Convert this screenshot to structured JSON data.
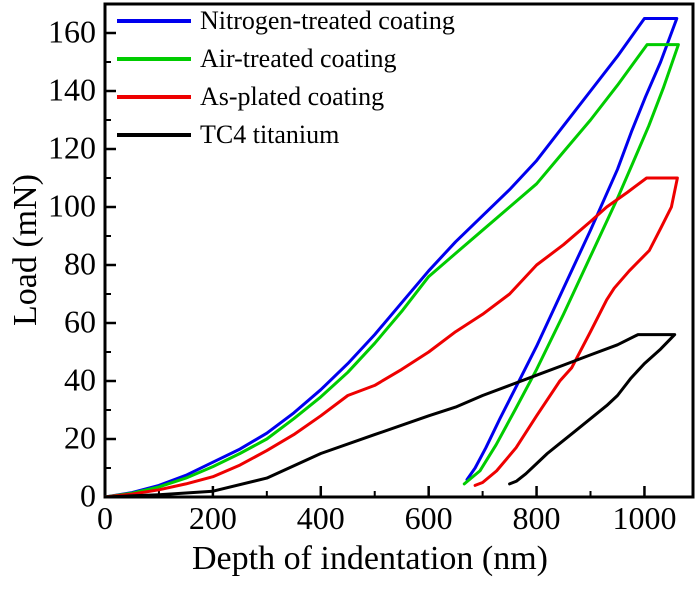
{
  "chart_data": {
    "type": "line",
    "title": "",
    "xlabel": "Depth of indentation (nm)",
    "ylabel": "Load (mN)",
    "xlim": [
      0,
      1090
    ],
    "ylim": [
      0,
      170
    ],
    "x_major_ticks": [
      0,
      200,
      400,
      600,
      800,
      1000
    ],
    "x_minor_ticks": [
      100,
      300,
      500,
      700,
      900
    ],
    "y_major_ticks": [
      0,
      20,
      40,
      60,
      80,
      100,
      120,
      140,
      160
    ],
    "y_minor_ticks": [
      10,
      30,
      50,
      70,
      90,
      110,
      130,
      150
    ],
    "grid": false,
    "legend_position": "top-left-inside",
    "axis_color": "#000000",
    "series": [
      {
        "name": "Nitrogen-treated coating",
        "color": "#0000ee",
        "max_load_mN": 165,
        "points": [
          [
            0,
            0
          ],
          [
            50,
            1.5
          ],
          [
            100,
            4
          ],
          [
            150,
            7.5
          ],
          [
            200,
            12
          ],
          [
            250,
            16.5
          ],
          [
            300,
            22
          ],
          [
            350,
            29
          ],
          [
            400,
            37
          ],
          [
            450,
            46
          ],
          [
            500,
            56
          ],
          [
            550,
            67
          ],
          [
            600,
            78
          ],
          [
            650,
            88
          ],
          [
            700,
            97
          ],
          [
            750,
            106
          ],
          [
            800,
            116
          ],
          [
            850,
            128
          ],
          [
            900,
            140
          ],
          [
            950,
            152
          ],
          [
            1000,
            165
          ],
          [
            1060,
            165
          ],
          [
            1030,
            150
          ],
          [
            1002,
            138
          ],
          [
            976,
            126
          ],
          [
            950,
            113
          ],
          [
            900,
            92
          ],
          [
            850,
            72
          ],
          [
            800,
            52
          ],
          [
            762,
            38
          ],
          [
            732,
            27
          ],
          [
            706,
            17
          ],
          [
            686,
            10
          ],
          [
            671,
            6
          ]
        ]
      },
      {
        "name": "Air-treated coating",
        "color": "#00cc00",
        "max_load_mN": 156,
        "points": [
          [
            0,
            0
          ],
          [
            50,
            1.3
          ],
          [
            100,
            3.5
          ],
          [
            150,
            6.5
          ],
          [
            200,
            10.5
          ],
          [
            250,
            15
          ],
          [
            300,
            20
          ],
          [
            350,
            27
          ],
          [
            400,
            34.5
          ],
          [
            450,
            43
          ],
          [
            500,
            53
          ],
          [
            550,
            64
          ],
          [
            600,
            76
          ],
          [
            650,
            84
          ],
          [
            700,
            92
          ],
          [
            750,
            100
          ],
          [
            800,
            108
          ],
          [
            850,
            119
          ],
          [
            900,
            130
          ],
          [
            950,
            142
          ],
          [
            1005,
            156
          ],
          [
            1063,
            156
          ],
          [
            1035,
            141
          ],
          [
            1008,
            128
          ],
          [
            978,
            115
          ],
          [
            950,
            103
          ],
          [
            900,
            83
          ],
          [
            850,
            63
          ],
          [
            800,
            44
          ],
          [
            760,
            30
          ],
          [
            725,
            18
          ],
          [
            695,
            9
          ],
          [
            666,
            4.5
          ]
        ]
      },
      {
        "name": "As-plated coating",
        "color": "#ee0000",
        "max_load_mN": 110,
        "points": [
          [
            0,
            0
          ],
          [
            50,
            1
          ],
          [
            100,
            2.5
          ],
          [
            150,
            4.5
          ],
          [
            200,
            7
          ],
          [
            250,
            11
          ],
          [
            300,
            16
          ],
          [
            350,
            21.5
          ],
          [
            400,
            28
          ],
          [
            450,
            35
          ],
          [
            500,
            38.5
          ],
          [
            550,
            44
          ],
          [
            600,
            50
          ],
          [
            650,
            57
          ],
          [
            700,
            63
          ],
          [
            750,
            70
          ],
          [
            800,
            80
          ],
          [
            850,
            87
          ],
          [
            900,
            95
          ],
          [
            930,
            100
          ],
          [
            968,
            105
          ],
          [
            1004,
            110
          ],
          [
            1061,
            110
          ],
          [
            1050,
            100
          ],
          [
            1031,
            93
          ],
          [
            1009,
            85
          ],
          [
            972,
            78
          ],
          [
            944,
            72
          ],
          [
            930,
            68
          ],
          [
            900,
            57
          ],
          [
            865,
            44.5
          ],
          [
            843,
            40
          ],
          [
            800,
            28
          ],
          [
            762,
            17
          ],
          [
            726,
            9
          ],
          [
            700,
            5
          ],
          [
            686,
            4
          ]
        ]
      },
      {
        "name": "TC4 titanium",
        "color": "#000000",
        "max_load_mN": 56,
        "points": [
          [
            0,
            0
          ],
          [
            100,
            0.8
          ],
          [
            200,
            2
          ],
          [
            300,
            6.5
          ],
          [
            400,
            15
          ],
          [
            500,
            21.5
          ],
          [
            600,
            28
          ],
          [
            650,
            31
          ],
          [
            700,
            35
          ],
          [
            750,
            38.5
          ],
          [
            800,
            42
          ],
          [
            850,
            45.5
          ],
          [
            900,
            49
          ],
          [
            950,
            52.5
          ],
          [
            988,
            56
          ],
          [
            1056,
            56
          ],
          [
            1030,
            51
          ],
          [
            1000,
            46
          ],
          [
            975,
            41
          ],
          [
            950,
            35
          ],
          [
            930,
            31.5
          ],
          [
            900,
            27
          ],
          [
            870,
            22.5
          ],
          [
            843,
            18.5
          ],
          [
            820,
            15
          ],
          [
            800,
            11.5
          ],
          [
            780,
            8
          ],
          [
            763,
            5.5
          ],
          [
            750,
            4.5
          ]
        ]
      }
    ]
  }
}
